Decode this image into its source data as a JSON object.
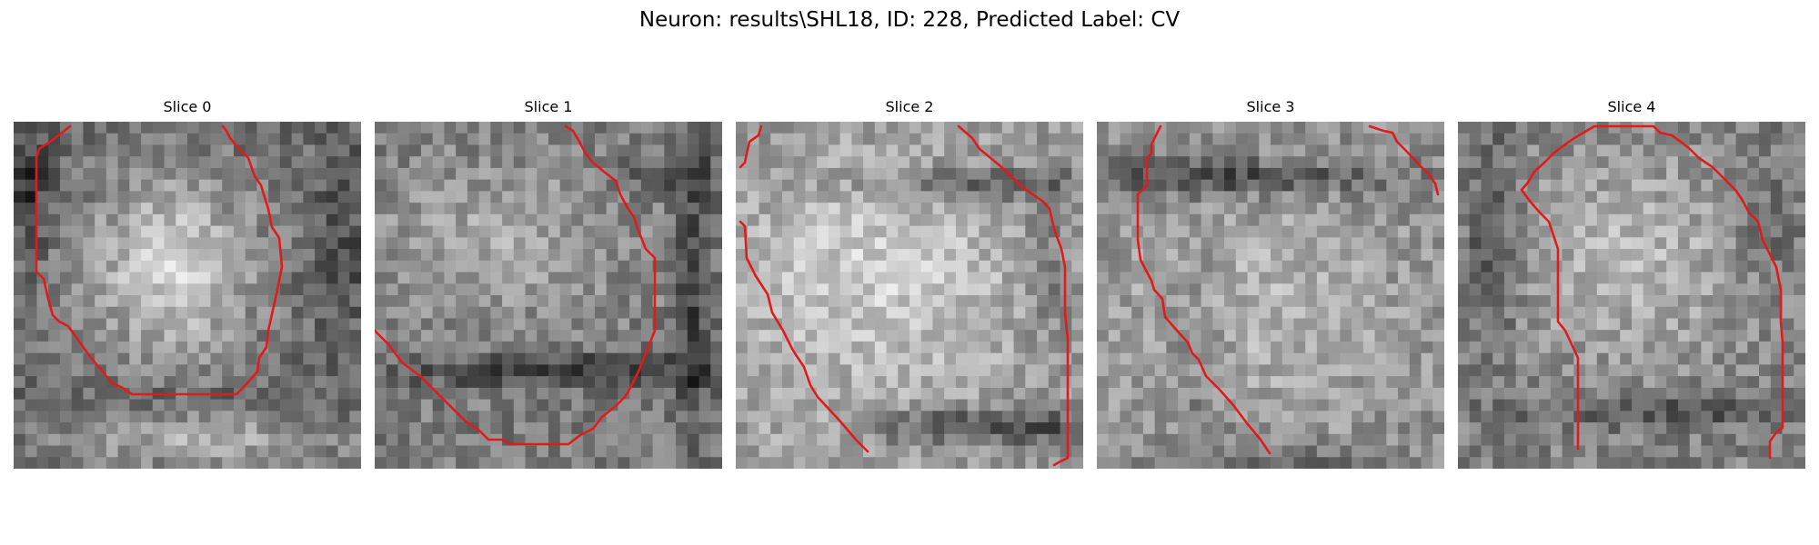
{
  "figure": {
    "title": "Neuron: results\\SHL18, ID: 228, Predicted Label: CV"
  },
  "colors": {
    "contour": "#e01b1b",
    "background": "#ffffff"
  },
  "slices": [
    {
      "title": "Slice 0"
    },
    {
      "title": "Slice 1"
    },
    {
      "title": "Slice 2"
    },
    {
      "title": "Slice 3"
    },
    {
      "title": "Slice 4"
    }
  ]
}
